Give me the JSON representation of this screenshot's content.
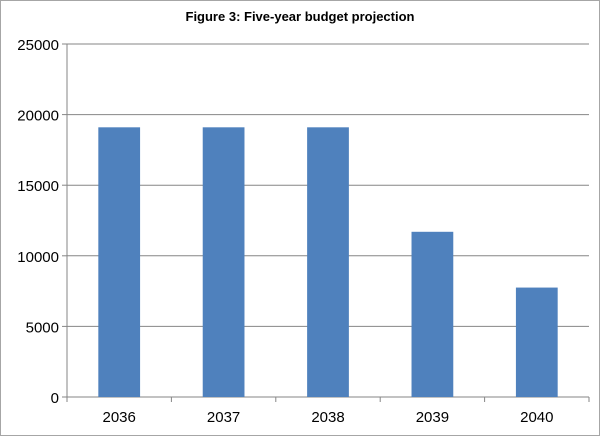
{
  "chart_data": {
    "type": "bar",
    "title": "Figure 3: Five-year budget projection",
    "xlabel": "",
    "ylabel": "",
    "categories": [
      "2036",
      "2037",
      "2038",
      "2039",
      "2040"
    ],
    "values": [
      19100,
      19100,
      19100,
      11700,
      7750
    ],
    "ylim": [
      0,
      25000
    ],
    "yticks": [
      "0",
      "5000",
      "10000",
      "15000",
      "20000",
      "25000"
    ],
    "grid": true,
    "legend": "none",
    "bar_color": "#4f81bd",
    "grid_color": "#868686"
  }
}
